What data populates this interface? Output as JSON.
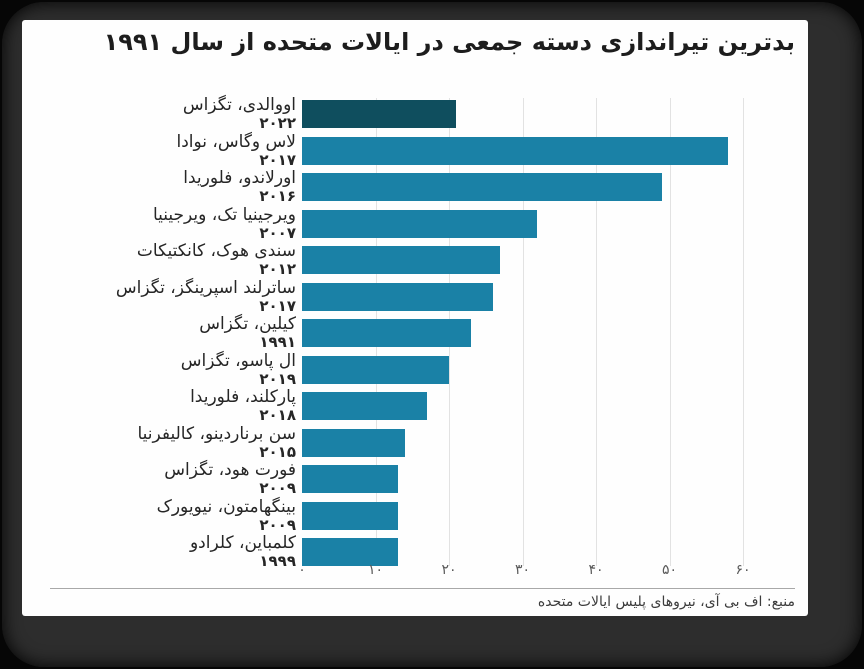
{
  "chart": {
    "title": "بدترین تیراندازی دسته جمعی در ایالات متحده از سال ۱۹۹۱",
    "source": "منبع: اف بی آی، نیروهای پلیس ایالات متحده"
  },
  "chart_data": {
    "type": "bar",
    "orientation": "horizontal",
    "title": "بدترین تیراندازی دسته جمعی در ایالات متحده از سال ۱۹۹۱",
    "source": "منبع: اف بی آی، نیروهای پلیس ایالات متحده",
    "xlabel": "",
    "ylabel": "",
    "xlim": [
      0,
      60
    ],
    "grid": true,
    "x_ticks": [
      {
        "value": 0,
        "label": "۰"
      },
      {
        "value": 10,
        "label": "۱۰"
      },
      {
        "value": 20,
        "label": "۲۰"
      },
      {
        "value": 30,
        "label": "۳۰"
      },
      {
        "value": 40,
        "label": "۴۰"
      },
      {
        "value": 50,
        "label": "۵۰"
      },
      {
        "value": 60,
        "label": "۶۰"
      }
    ],
    "rows": [
      {
        "name": "اووالدی، تگزاس",
        "year": "۲۰۲۲",
        "year_en": 2022,
        "value": 21,
        "highlight": true
      },
      {
        "name": "لاس وگاس، نوادا",
        "year": "۲۰۱۷",
        "year_en": 2017,
        "value": 58,
        "highlight": false
      },
      {
        "name": "اورلاندو، فلوریدا",
        "year": "۲۰۱۶",
        "year_en": 2016,
        "value": 49,
        "highlight": false
      },
      {
        "name": "ویرجینیا تک، ویرجینیا",
        "year": "۲۰۰۷",
        "year_en": 2007,
        "value": 32,
        "highlight": false
      },
      {
        "name": "سندی هوک، کانکتیکات",
        "year": "۲۰۱۲",
        "year_en": 2012,
        "value": 27,
        "highlight": false
      },
      {
        "name": "ساترلند اسپرینگز، تگزاس",
        "year": "۲۰۱۷",
        "year_en": 2017,
        "value": 26,
        "highlight": false
      },
      {
        "name": "کیلین، تگزاس",
        "year": "۱۹۹۱",
        "year_en": 1991,
        "value": 23,
        "highlight": false
      },
      {
        "name": "ال پاسو، تگزاس",
        "year": "۲۰۱۹",
        "year_en": 2019,
        "value": 20,
        "highlight": false
      },
      {
        "name": "پارکلند، فلوریدا",
        "year": "۲۰۱۸",
        "year_en": 2018,
        "value": 17,
        "highlight": false
      },
      {
        "name": "سن برناردینو، کالیفرنیا",
        "year": "۲۰۱۵",
        "year_en": 2015,
        "value": 14,
        "highlight": false
      },
      {
        "name": "فورت هود، تگزاس",
        "year": "۲۰۰۹",
        "year_en": 2009,
        "value": 13,
        "highlight": false
      },
      {
        "name": "بینگهامتون، نیویورک",
        "year": "۲۰۰۹",
        "year_en": 2009,
        "value": 13,
        "highlight": false
      },
      {
        "name": "کلمباین، کلرادو",
        "year": "۱۹۹۹",
        "year_en": 1999,
        "value": 13,
        "highlight": false
      }
    ],
    "colors": {
      "bar": "#1a81a6",
      "bar_highlight": "#0f4e5e",
      "gridline": "#e2e2e2",
      "frame": "#2d2d2d",
      "card_background": "#fefefe",
      "title_text": "#1d1d1d",
      "axis_text": "#5a5a5a"
    },
    "legend": null
  }
}
